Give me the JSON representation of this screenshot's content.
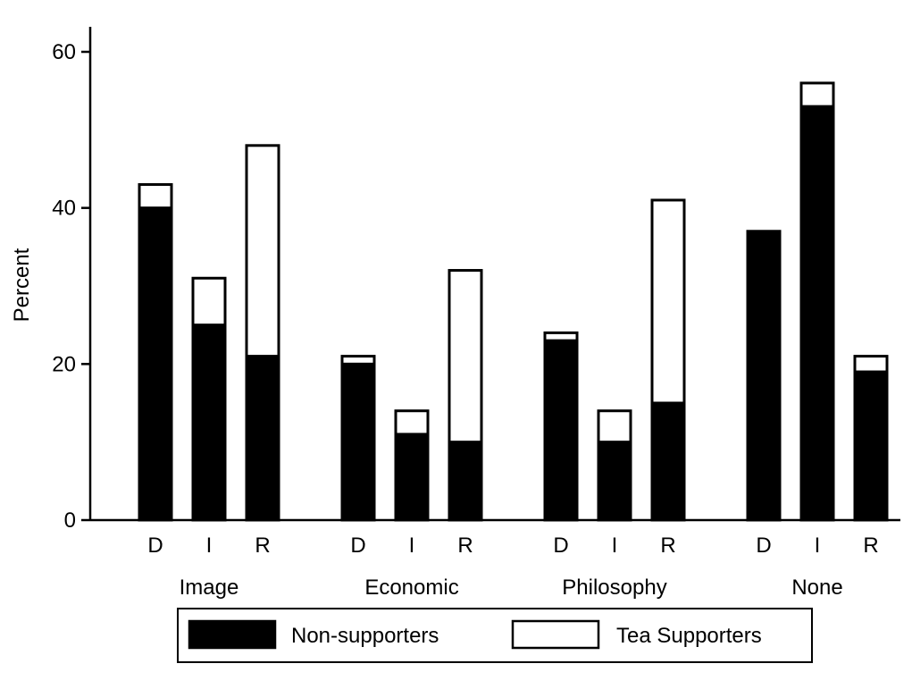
{
  "chart_data": {
    "type": "bar",
    "stacked": true,
    "groups": [
      "Image",
      "Economic",
      "Philosophy",
      "None"
    ],
    "categories": [
      "D",
      "I",
      "R"
    ],
    "ylabel": "Percent",
    "ylim": [
      0,
      60
    ],
    "yticks": [
      0,
      20,
      40,
      60
    ],
    "grid": false,
    "legend_position": "bottom",
    "series": [
      {
        "name": "Non-supporters",
        "color": "#000000",
        "values": [
          [
            40,
            25,
            21
          ],
          [
            20,
            11,
            10
          ],
          [
            23,
            10,
            15
          ],
          [
            37,
            53,
            19
          ]
        ]
      },
      {
        "name": "Tea Supporters",
        "color": "#ffffff",
        "values": [
          [
            43,
            31,
            48
          ],
          [
            21,
            14,
            32
          ],
          [
            24,
            14,
            41
          ],
          [
            37,
            56,
            21
          ]
        ]
      }
    ]
  }
}
